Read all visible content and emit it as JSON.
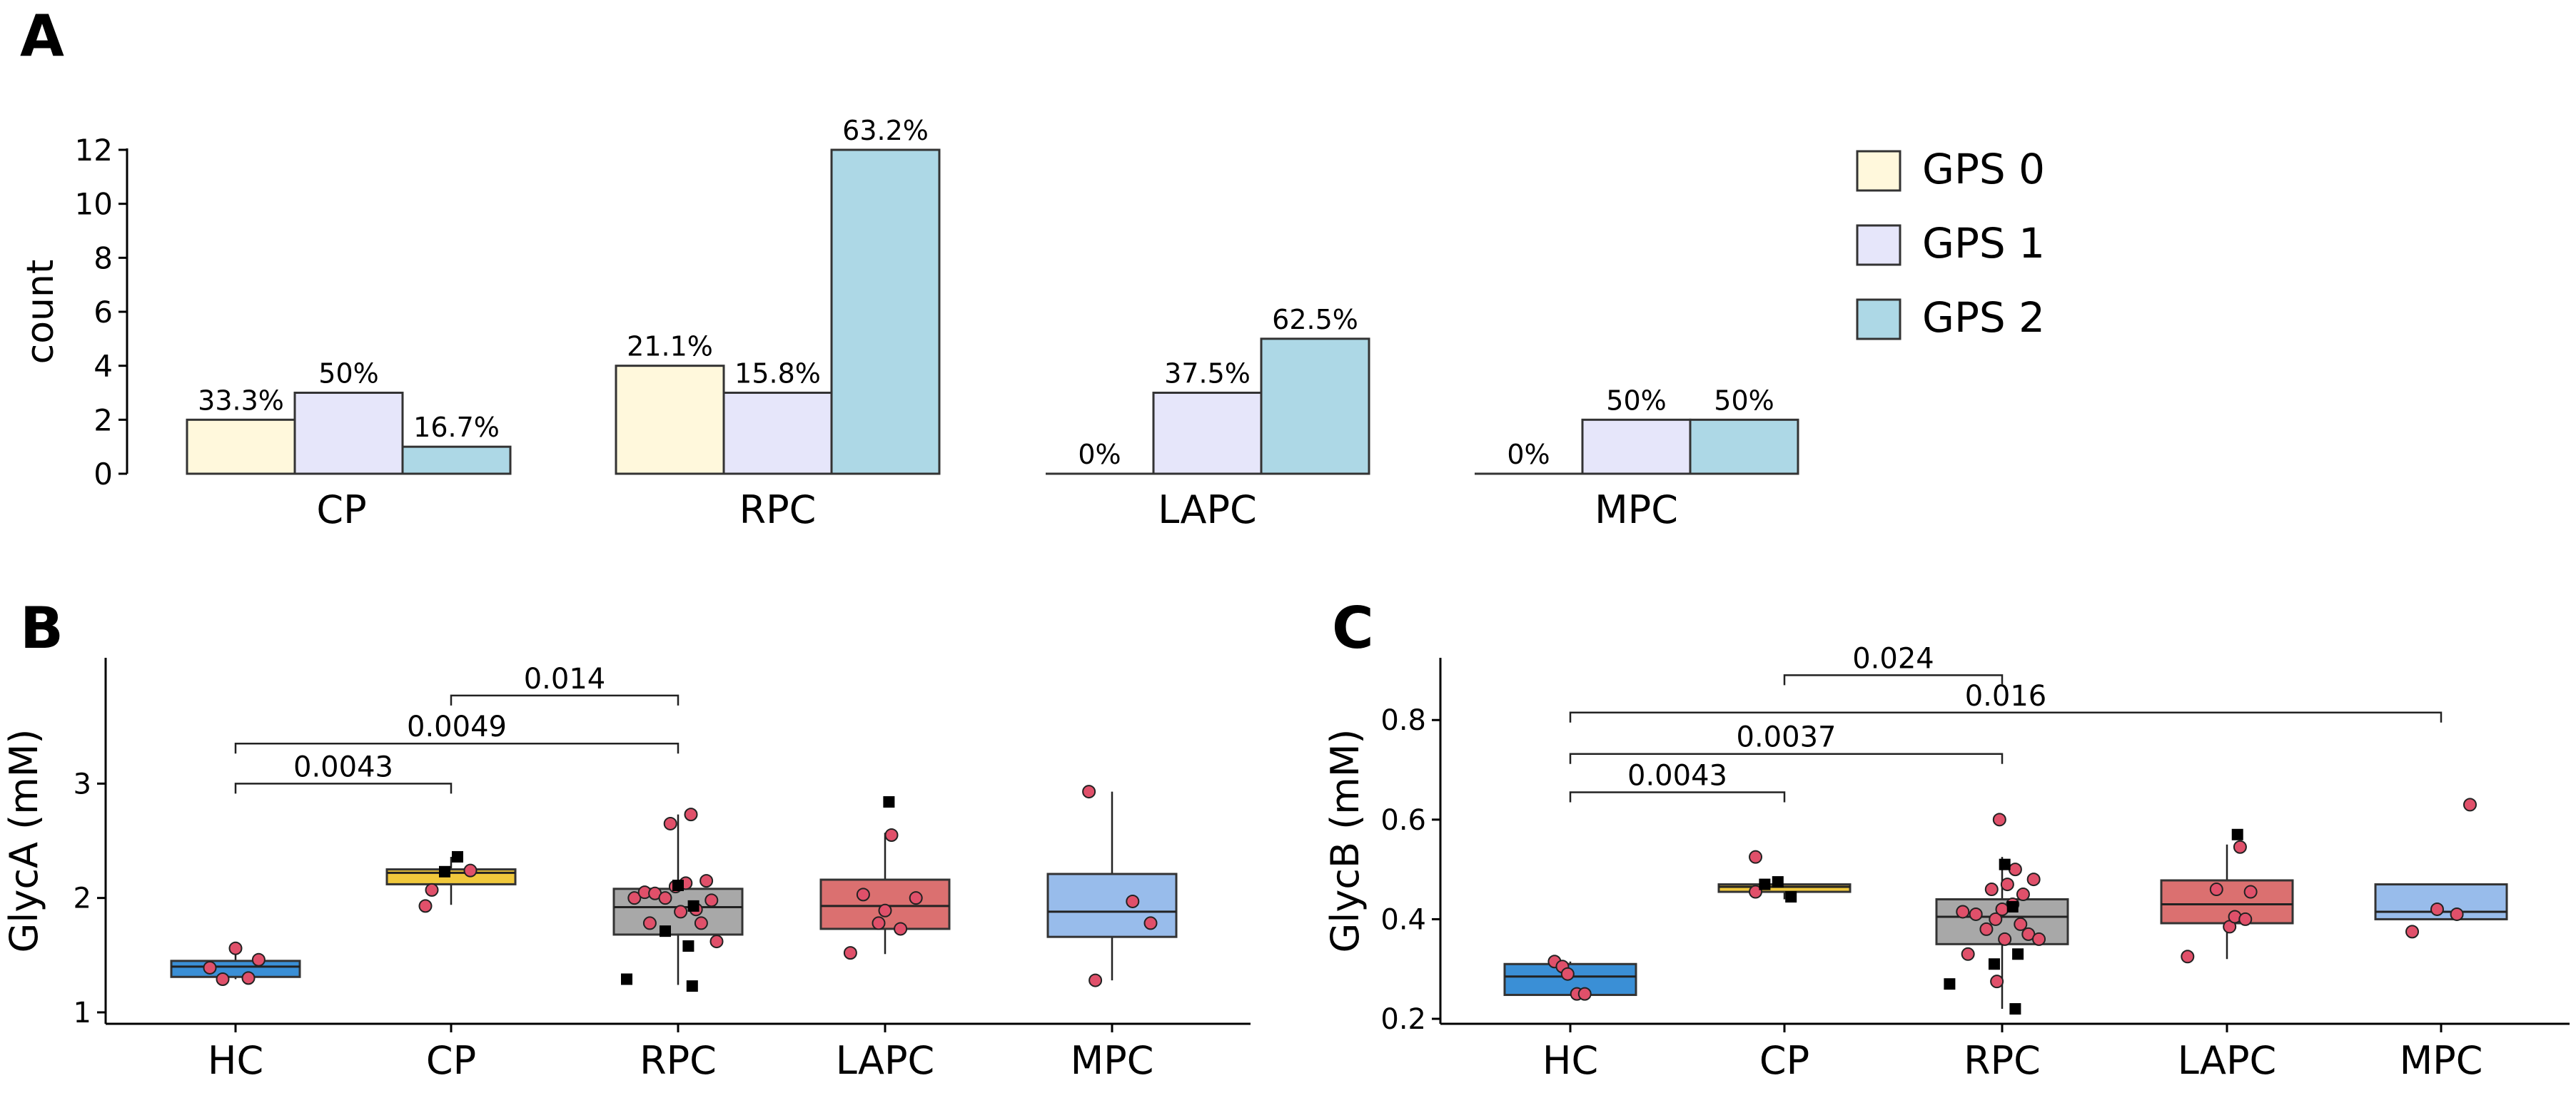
{
  "figure": {
    "panel_labels": [
      "A",
      "B",
      "C"
    ]
  },
  "chart_data": [
    {
      "panel": "A",
      "type": "bar",
      "ylabel": "count",
      "ylim": [
        0,
        12
      ],
      "yticks": [
        0,
        2,
        4,
        6,
        8,
        10,
        12
      ],
      "legend": {
        "position": "right",
        "entries": [
          "GPS 0",
          "GPS 1",
          "GPS 2"
        ]
      },
      "colors": {
        "GPS 0": "#FFF8DC",
        "GPS 1": "#E6E6FA",
        "GPS 2": "#ADD8E6"
      },
      "categories": [
        "CP",
        "RPC",
        "LAPC",
        "MPC"
      ],
      "series": [
        {
          "name": "GPS 0",
          "values": [
            2,
            4,
            0,
            0
          ],
          "labels": [
            "33.3%",
            "21.1%",
            "0%",
            "0%"
          ]
        },
        {
          "name": "GPS 1",
          "values": [
            3,
            3,
            3,
            2
          ],
          "labels": [
            "50%",
            "15.8%",
            "37.5%",
            "50%"
          ]
        },
        {
          "name": "GPS 2",
          "values": [
            1,
            12,
            5,
            2
          ],
          "labels": [
            "16.7%",
            "63.2%",
            "62.5%",
            "50%"
          ]
        }
      ]
    },
    {
      "panel": "B",
      "type": "box",
      "ylabel": "GlycA (mM)",
      "ylim": [
        0.9,
        4.1
      ],
      "yticks": [
        1,
        2,
        3
      ],
      "categories": [
        "HC",
        "CP",
        "RPC",
        "LAPC",
        "MPC"
      ],
      "colors": [
        "#3A8FD6",
        "#F0C83C",
        "#A8A8A8",
        "#DB7070",
        "#98BCEB"
      ],
      "boxes": [
        {
          "q1": 1.31,
          "median": 1.4,
          "q3": 1.45,
          "whisker_low": 1.29,
          "whisker_high": 1.56
        },
        {
          "q1": 2.12,
          "median": 2.22,
          "q3": 2.25,
          "whisker_low": 1.94,
          "whisker_high": 2.36
        },
        {
          "q1": 1.68,
          "median": 1.92,
          "q3": 2.08,
          "whisker_low": 1.24,
          "whisker_high": 2.73
        },
        {
          "q1": 1.73,
          "median": 1.93,
          "q3": 2.16,
          "whisker_low": 1.51,
          "whisker_high": 2.57
        },
        {
          "q1": 1.66,
          "median": 1.88,
          "q3": 2.21,
          "whisker_low": 1.28,
          "whisker_high": 2.93
        }
      ],
      "circles": [
        [
          {
            "x": -0.2,
            "y": 1.39
          },
          {
            "x": -0.1,
            "y": 1.29
          },
          {
            "x": 0.0,
            "y": 1.56
          },
          {
            "x": 0.1,
            "y": 1.3
          },
          {
            "x": 0.18,
            "y": 1.46
          }
        ],
        [
          {
            "x": -0.2,
            "y": 1.93
          },
          {
            "x": -0.15,
            "y": 2.07
          },
          {
            "x": 0.15,
            "y": 2.24
          }
        ],
        [
          {
            "x": -0.34,
            "y": 2.0
          },
          {
            "x": -0.26,
            "y": 2.05
          },
          {
            "x": -0.18,
            "y": 2.04
          },
          {
            "x": -0.1,
            "y": 2.0
          },
          {
            "x": -0.06,
            "y": 2.65
          },
          {
            "x": -0.02,
            "y": 2.1
          },
          {
            "x": 0.02,
            "y": 1.88
          },
          {
            "x": 0.06,
            "y": 2.13
          },
          {
            "x": 0.1,
            "y": 2.73
          },
          {
            "x": 0.14,
            "y": 1.9
          },
          {
            "x": 0.18,
            "y": 1.78
          },
          {
            "x": 0.22,
            "y": 2.15
          },
          {
            "x": 0.26,
            "y": 1.98
          },
          {
            "x": 0.3,
            "y": 1.62
          },
          {
            "x": -0.22,
            "y": 1.78
          }
        ],
        [
          {
            "x": -0.27,
            "y": 1.52
          },
          {
            "x": -0.17,
            "y": 2.03
          },
          {
            "x": -0.05,
            "y": 1.78
          },
          {
            "x": 0.05,
            "y": 2.55
          },
          {
            "x": 0.12,
            "y": 1.73
          },
          {
            "x": 0.24,
            "y": 2.0
          },
          {
            "x": 0.0,
            "y": 1.89
          }
        ],
        [
          {
            "x": -0.18,
            "y": 2.93
          },
          {
            "x": -0.13,
            "y": 1.28
          },
          {
            "x": 0.16,
            "y": 1.97
          },
          {
            "x": 0.3,
            "y": 1.78
          }
        ]
      ],
      "squares": [
        [],
        [
          {
            "x": -0.05,
            "y": 2.23
          },
          {
            "x": 0.05,
            "y": 2.36
          }
        ],
        [
          {
            "x": -0.4,
            "y": 1.29
          },
          {
            "x": -0.1,
            "y": 1.71
          },
          {
            "x": 0.0,
            "y": 2.11
          },
          {
            "x": 0.08,
            "y": 1.58
          },
          {
            "x": 0.11,
            "y": 1.23
          },
          {
            "x": 0.12,
            "y": 1.93
          }
        ],
        [
          {
            "x": 0.03,
            "y": 2.84
          }
        ],
        []
      ],
      "annotations": [
        {
          "from": 0,
          "to": 1,
          "y": 3.0,
          "label": "0.0043"
        },
        {
          "from": 0,
          "to": 2,
          "y": 3.35,
          "label": "0.0049"
        },
        {
          "from": 1,
          "to": 2,
          "y": 3.77,
          "label": "0.014"
        }
      ]
    },
    {
      "panel": "C",
      "type": "box",
      "ylabel": "GlycB (mM)",
      "ylim": [
        0.19,
        0.925
      ],
      "yticks": [
        0.2,
        0.4,
        0.6,
        0.8
      ],
      "categories": [
        "HC",
        "CP",
        "RPC",
        "LAPC",
        "MPC"
      ],
      "colors": [
        "#3A8FD6",
        "#F0C83C",
        "#A8A8A8",
        "#DB7070",
        "#98BCEB"
      ],
      "boxes": [
        {
          "q1": 0.248,
          "median": 0.285,
          "q3": 0.31,
          "whisker_low": 0.248,
          "whisker_high": 0.315
        },
        {
          "q1": 0.455,
          "median": 0.465,
          "q3": 0.47,
          "whisker_low": 0.44,
          "whisker_high": 0.47
        },
        {
          "q1": 0.35,
          "median": 0.405,
          "q3": 0.44,
          "whisker_low": 0.22,
          "whisker_high": 0.525
        },
        {
          "q1": 0.392,
          "median": 0.43,
          "q3": 0.478,
          "whisker_low": 0.32,
          "whisker_high": 0.55
        },
        {
          "q1": 0.4,
          "median": 0.415,
          "q3": 0.47,
          "whisker_low": 0.4,
          "whisker_high": 0.47
        }
      ],
      "circles": [
        [
          {
            "x": -0.12,
            "y": 0.315
          },
          {
            "x": -0.06,
            "y": 0.305
          },
          {
            "x": -0.02,
            "y": 0.29
          },
          {
            "x": 0.05,
            "y": 0.25
          },
          {
            "x": 0.11,
            "y": 0.25
          }
        ],
        [
          {
            "x": -0.22,
            "y": 0.455
          },
          {
            "x": -0.22,
            "y": 0.525
          }
        ],
        [
          {
            "x": -0.3,
            "y": 0.415
          },
          {
            "x": -0.2,
            "y": 0.41
          },
          {
            "x": -0.12,
            "y": 0.38
          },
          {
            "x": -0.08,
            "y": 0.46
          },
          {
            "x": -0.05,
            "y": 0.4
          },
          {
            "x": -0.02,
            "y": 0.6
          },
          {
            "x": 0.02,
            "y": 0.36
          },
          {
            "x": 0.04,
            "y": 0.47
          },
          {
            "x": 0.08,
            "y": 0.43
          },
          {
            "x": 0.1,
            "y": 0.5
          },
          {
            "x": 0.14,
            "y": 0.39
          },
          {
            "x": 0.16,
            "y": 0.45
          },
          {
            "x": 0.2,
            "y": 0.37
          },
          {
            "x": 0.24,
            "y": 0.48
          },
          {
            "x": 0.28,
            "y": 0.36
          },
          {
            "x": -0.26,
            "y": 0.33
          },
          {
            "x": -0.04,
            "y": 0.275
          },
          {
            "x": 0.0,
            "y": 0.42
          }
        ],
        [
          {
            "x": -0.3,
            "y": 0.325
          },
          {
            "x": -0.08,
            "y": 0.46
          },
          {
            "x": 0.02,
            "y": 0.385
          },
          {
            "x": 0.06,
            "y": 0.405
          },
          {
            "x": 0.1,
            "y": 0.545
          },
          {
            "x": 0.18,
            "y": 0.455
          },
          {
            "x": 0.14,
            "y": 0.4
          }
        ],
        [
          {
            "x": -0.22,
            "y": 0.375
          },
          {
            "x": -0.03,
            "y": 0.42
          },
          {
            "x": 0.12,
            "y": 0.41
          },
          {
            "x": 0.22,
            "y": 0.63
          }
        ]
      ],
      "squares": [
        [],
        [
          {
            "x": -0.15,
            "y": 0.47
          },
          {
            "x": -0.05,
            "y": 0.475
          },
          {
            "x": 0.05,
            "y": 0.445
          }
        ],
        [
          {
            "x": -0.4,
            "y": 0.27
          },
          {
            "x": 0.02,
            "y": 0.51
          },
          {
            "x": 0.08,
            "y": 0.425
          },
          {
            "x": 0.12,
            "y": 0.33
          },
          {
            "x": -0.06,
            "y": 0.31
          },
          {
            "x": 0.1,
            "y": 0.22
          }
        ],
        [
          {
            "x": 0.08,
            "y": 0.57
          }
        ],
        []
      ],
      "annotations": [
        {
          "from": 0,
          "to": 1,
          "y": 0.655,
          "label": "0.0043"
        },
        {
          "from": 0,
          "to": 2,
          "y": 0.732,
          "label": "0.0037"
        },
        {
          "from": 0,
          "to": 4,
          "y": 0.815,
          "label": "0.016"
        },
        {
          "from": 1,
          "to": 2,
          "y": 0.89,
          "label": "0.024"
        }
      ]
    }
  ]
}
